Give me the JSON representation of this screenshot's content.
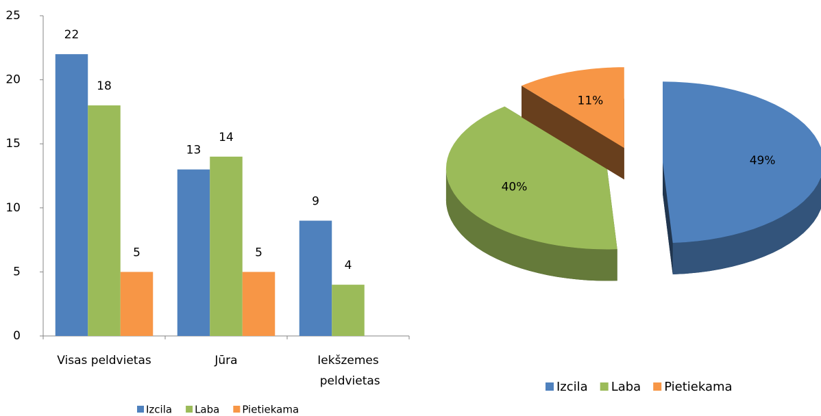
{
  "chart_data": [
    {
      "type": "bar",
      "categories": [
        "Visas peldvietas",
        "Jūra",
        "Iekšzemes peldvietas"
      ],
      "series": [
        {
          "name": "Izcila",
          "color": "#4f81bd",
          "values": [
            22,
            13,
            9
          ]
        },
        {
          "name": "Laba",
          "color": "#9bbb59",
          "values": [
            18,
            14,
            4
          ]
        },
        {
          "name": "Pietiekama",
          "color": "#f79646",
          "values": [
            5,
            5,
            null
          ]
        }
      ],
      "ylim": [
        0,
        25
      ],
      "yticks": [
        0,
        5,
        10,
        15,
        20,
        25
      ],
      "grid": false,
      "legend": "bottom"
    },
    {
      "type": "pie",
      "categories": [
        "Izcila",
        "Laba",
        "Pietiekama"
      ],
      "values": [
        49,
        40,
        11
      ],
      "value_labels": [
        "49%",
        "40%",
        "11%"
      ],
      "colors": [
        "#4f81bd",
        "#9bbb59",
        "#f79646"
      ],
      "legend": "bottom"
    }
  ]
}
